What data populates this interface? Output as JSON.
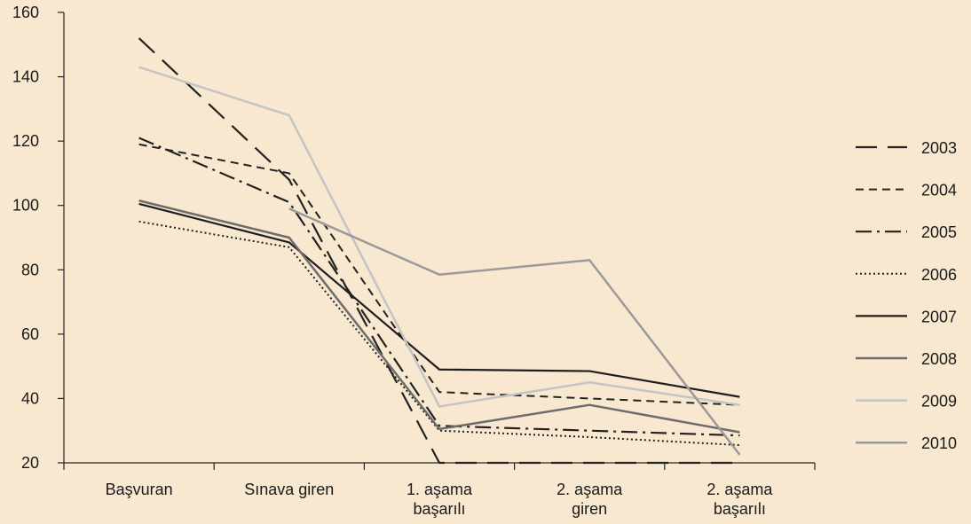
{
  "chart_data": {
    "type": "line",
    "title": "",
    "xlabel": "",
    "ylabel": "",
    "categories": [
      [
        "Başvuran"
      ],
      [
        "Sınava giren"
      ],
      [
        "1. aşama",
        "başarılı"
      ],
      [
        "2. aşama",
        "giren"
      ],
      [
        "2. aşama",
        "başarılı"
      ]
    ],
    "ylim": [
      20,
      160
    ],
    "yticks": [
      20,
      40,
      60,
      80,
      100,
      120,
      140,
      160
    ],
    "grid": false,
    "legend_position": "right",
    "series": [
      {
        "name": "2003",
        "values": [
          152,
          108,
          20,
          20,
          20
        ],
        "color": "#222222",
        "dash": "24,12",
        "width": 2.2
      },
      {
        "name": "2004",
        "values": [
          119,
          110,
          42,
          40,
          38
        ],
        "color": "#222222",
        "dash": "9,6",
        "width": 2
      },
      {
        "name": "2005",
        "values": [
          121,
          101,
          31.5,
          30,
          28.5
        ],
        "color": "#222222",
        "dash": "18,6,3,6",
        "width": 2.2
      },
      {
        "name": "2006",
        "values": [
          95,
          87,
          30,
          28,
          25.5
        ],
        "color": "#222222",
        "dash": "2,3",
        "width": 2
      },
      {
        "name": "2007",
        "values": [
          100.5,
          88.5,
          49,
          48.5,
          40.5
        ],
        "color": "#1e1e1e",
        "dash": "",
        "width": 2.2
      },
      {
        "name": "2008",
        "values": [
          101.5,
          90,
          30.5,
          38,
          29.5
        ],
        "color": "#6d6d6d",
        "dash": "",
        "width": 2.5
      },
      {
        "name": "2009",
        "values": [
          143,
          128,
          37.5,
          45,
          38
        ],
        "color": "#c4c4c4",
        "dash": "",
        "width": 2.5
      },
      {
        "name": "2010",
        "values": [
          null,
          99,
          78.5,
          83,
          22.5
        ],
        "color": "#9a9a9a",
        "dash": "",
        "width": 2.5
      }
    ]
  }
}
